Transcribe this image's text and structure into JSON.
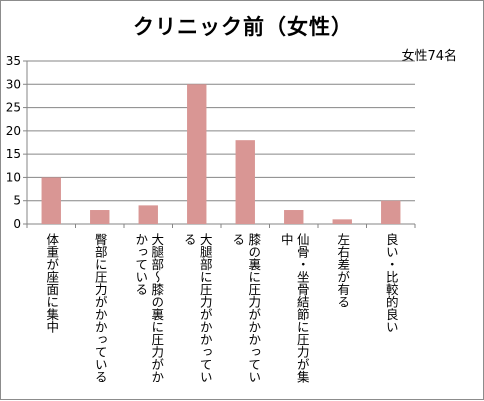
{
  "chart_data": {
    "type": "bar",
    "title": "クリニック前（女性）",
    "annotation": "女性74名",
    "categories": [
      "体重が座面に集中",
      "臀部に圧力がかかっている",
      "大腿部～膝の裏に圧力がかかっている",
      "大腿部に圧力がかかっている",
      "膝の裏に圧力がかかっている",
      "仙骨・坐骨結節に圧力が集中",
      "左右差が有る",
      "良い・比較的良い"
    ],
    "values": [
      10,
      3,
      4,
      30,
      18,
      3,
      1,
      5
    ],
    "ylim": [
      0,
      35
    ],
    "yticks": [
      0,
      5,
      10,
      15,
      20,
      25,
      30,
      35
    ],
    "grid": true,
    "legend": "none",
    "colors": {
      "bar": "#d99694",
      "grid": "#868686",
      "axis": "#868686"
    }
  }
}
